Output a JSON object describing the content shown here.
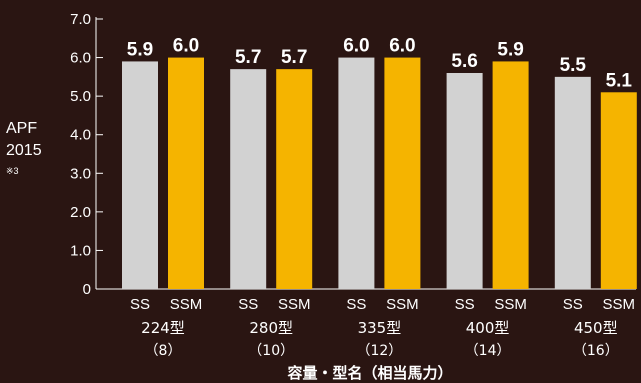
{
  "chart_data": {
    "type": "bar",
    "ylabel": [
      "APF",
      "2015",
      "※3"
    ],
    "xlabel": "容量・型名（相当馬力）",
    "ylim": [
      0,
      7
    ],
    "yticks": [
      "0",
      "1.0",
      "2.0",
      "3.0",
      "4.0",
      "5.0",
      "6.0",
      "7.0"
    ],
    "categories": [
      {
        "name": "224型",
        "sub": "（8）"
      },
      {
        "name": "280型",
        "sub": "（10）"
      },
      {
        "name": "335型",
        "sub": "（12）"
      },
      {
        "name": "400型",
        "sub": "（14）"
      },
      {
        "name": "450型",
        "sub": "（16）"
      }
    ],
    "series": [
      {
        "name": "SS",
        "color": "#d2d2d2",
        "values": [
          5.9,
          5.7,
          6.0,
          5.6,
          5.5
        ],
        "labels": [
          "5.9",
          "5.7",
          "6.0",
          "5.6",
          "5.5"
        ]
      },
      {
        "name": "SSM",
        "color": "#f5b400",
        "values": [
          6.0,
          5.7,
          6.0,
          5.9,
          5.1
        ],
        "labels": [
          "6.0",
          "5.7",
          "6.0",
          "5.9",
          "5.1"
        ]
      }
    ],
    "background": "#2a1512",
    "grid": false
  }
}
